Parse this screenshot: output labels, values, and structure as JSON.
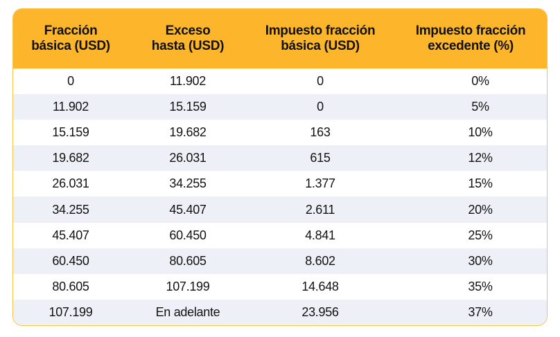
{
  "table": {
    "headers": [
      {
        "line1": "Fracción",
        "line2": "básica (USD)"
      },
      {
        "line1": "Exceso",
        "line2": "hasta (USD)"
      },
      {
        "line1": "Impuesto fracción",
        "line2": "básica (USD)"
      },
      {
        "line1": "Impuesto fracción",
        "line2": "excedente (%)"
      }
    ],
    "rows": [
      [
        "0",
        "11.902",
        "0",
        "0%"
      ],
      [
        "11.902",
        "15.159",
        "0",
        "5%"
      ],
      [
        "15.159",
        "19.682",
        "163",
        "10%"
      ],
      [
        "19.682",
        "26.031",
        "615",
        "12%"
      ],
      [
        "26.031",
        "34.255",
        "1.377",
        "15%"
      ],
      [
        "34.255",
        "45.407",
        "2.611",
        "20%"
      ],
      [
        "45.407",
        "60.450",
        "4.841",
        "25%"
      ],
      [
        "60.450",
        "80.605",
        "8.602",
        "30%"
      ],
      [
        "80.605",
        "107.199",
        "14.648",
        "35%"
      ],
      [
        "107.199",
        "En adelante",
        "23.956",
        "37%"
      ]
    ]
  },
  "colors": {
    "header_background": "#fdb52b",
    "border": "#f7c24a",
    "stripe": "#eef0f8",
    "text": "#111111"
  }
}
